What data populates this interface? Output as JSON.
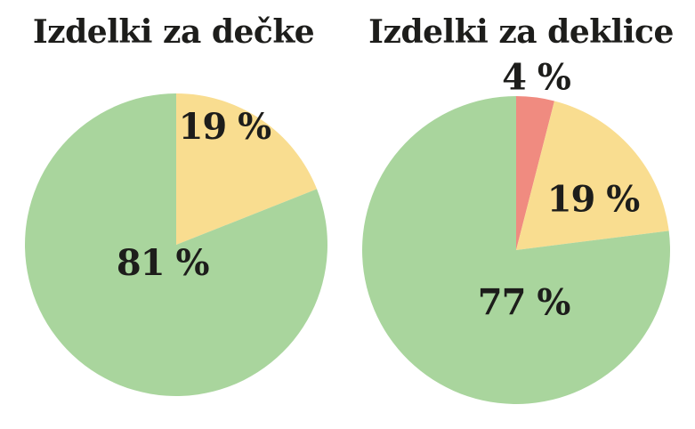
{
  "page": {
    "background_color": "#ffffff",
    "text_color": "#1d1d1b"
  },
  "chart_data": [
    {
      "type": "pie",
      "title": "Izdelki za dečke",
      "start_angle_deg": 0,
      "direction": "clockwise",
      "legend": "none",
      "slices": [
        {
          "label": "19 %",
          "value": 19,
          "color": "#f9dd90",
          "label_offset": [
            0.32,
            -0.78
          ]
        },
        {
          "label": "81 %",
          "value": 81,
          "color": "#a9d59d",
          "label_offset": [
            -0.09,
            0.12
          ]
        }
      ]
    },
    {
      "type": "pie",
      "title": "Izdelki za deklice",
      "start_angle_deg": 0,
      "direction": "clockwise",
      "legend": "none",
      "slices": [
        {
          "label": "4 %",
          "value": 4,
          "color": "#f08b80",
          "label_offset": [
            0.13,
            -1.12
          ],
          "label_outside": true
        },
        {
          "label": "19 %",
          "value": 19,
          "color": "#f9dd90",
          "label_offset": [
            0.5,
            -0.33
          ]
        },
        {
          "label": "77 %",
          "value": 77,
          "color": "#a9d59d",
          "label_offset": [
            0.05,
            0.34
          ]
        }
      ]
    }
  ]
}
